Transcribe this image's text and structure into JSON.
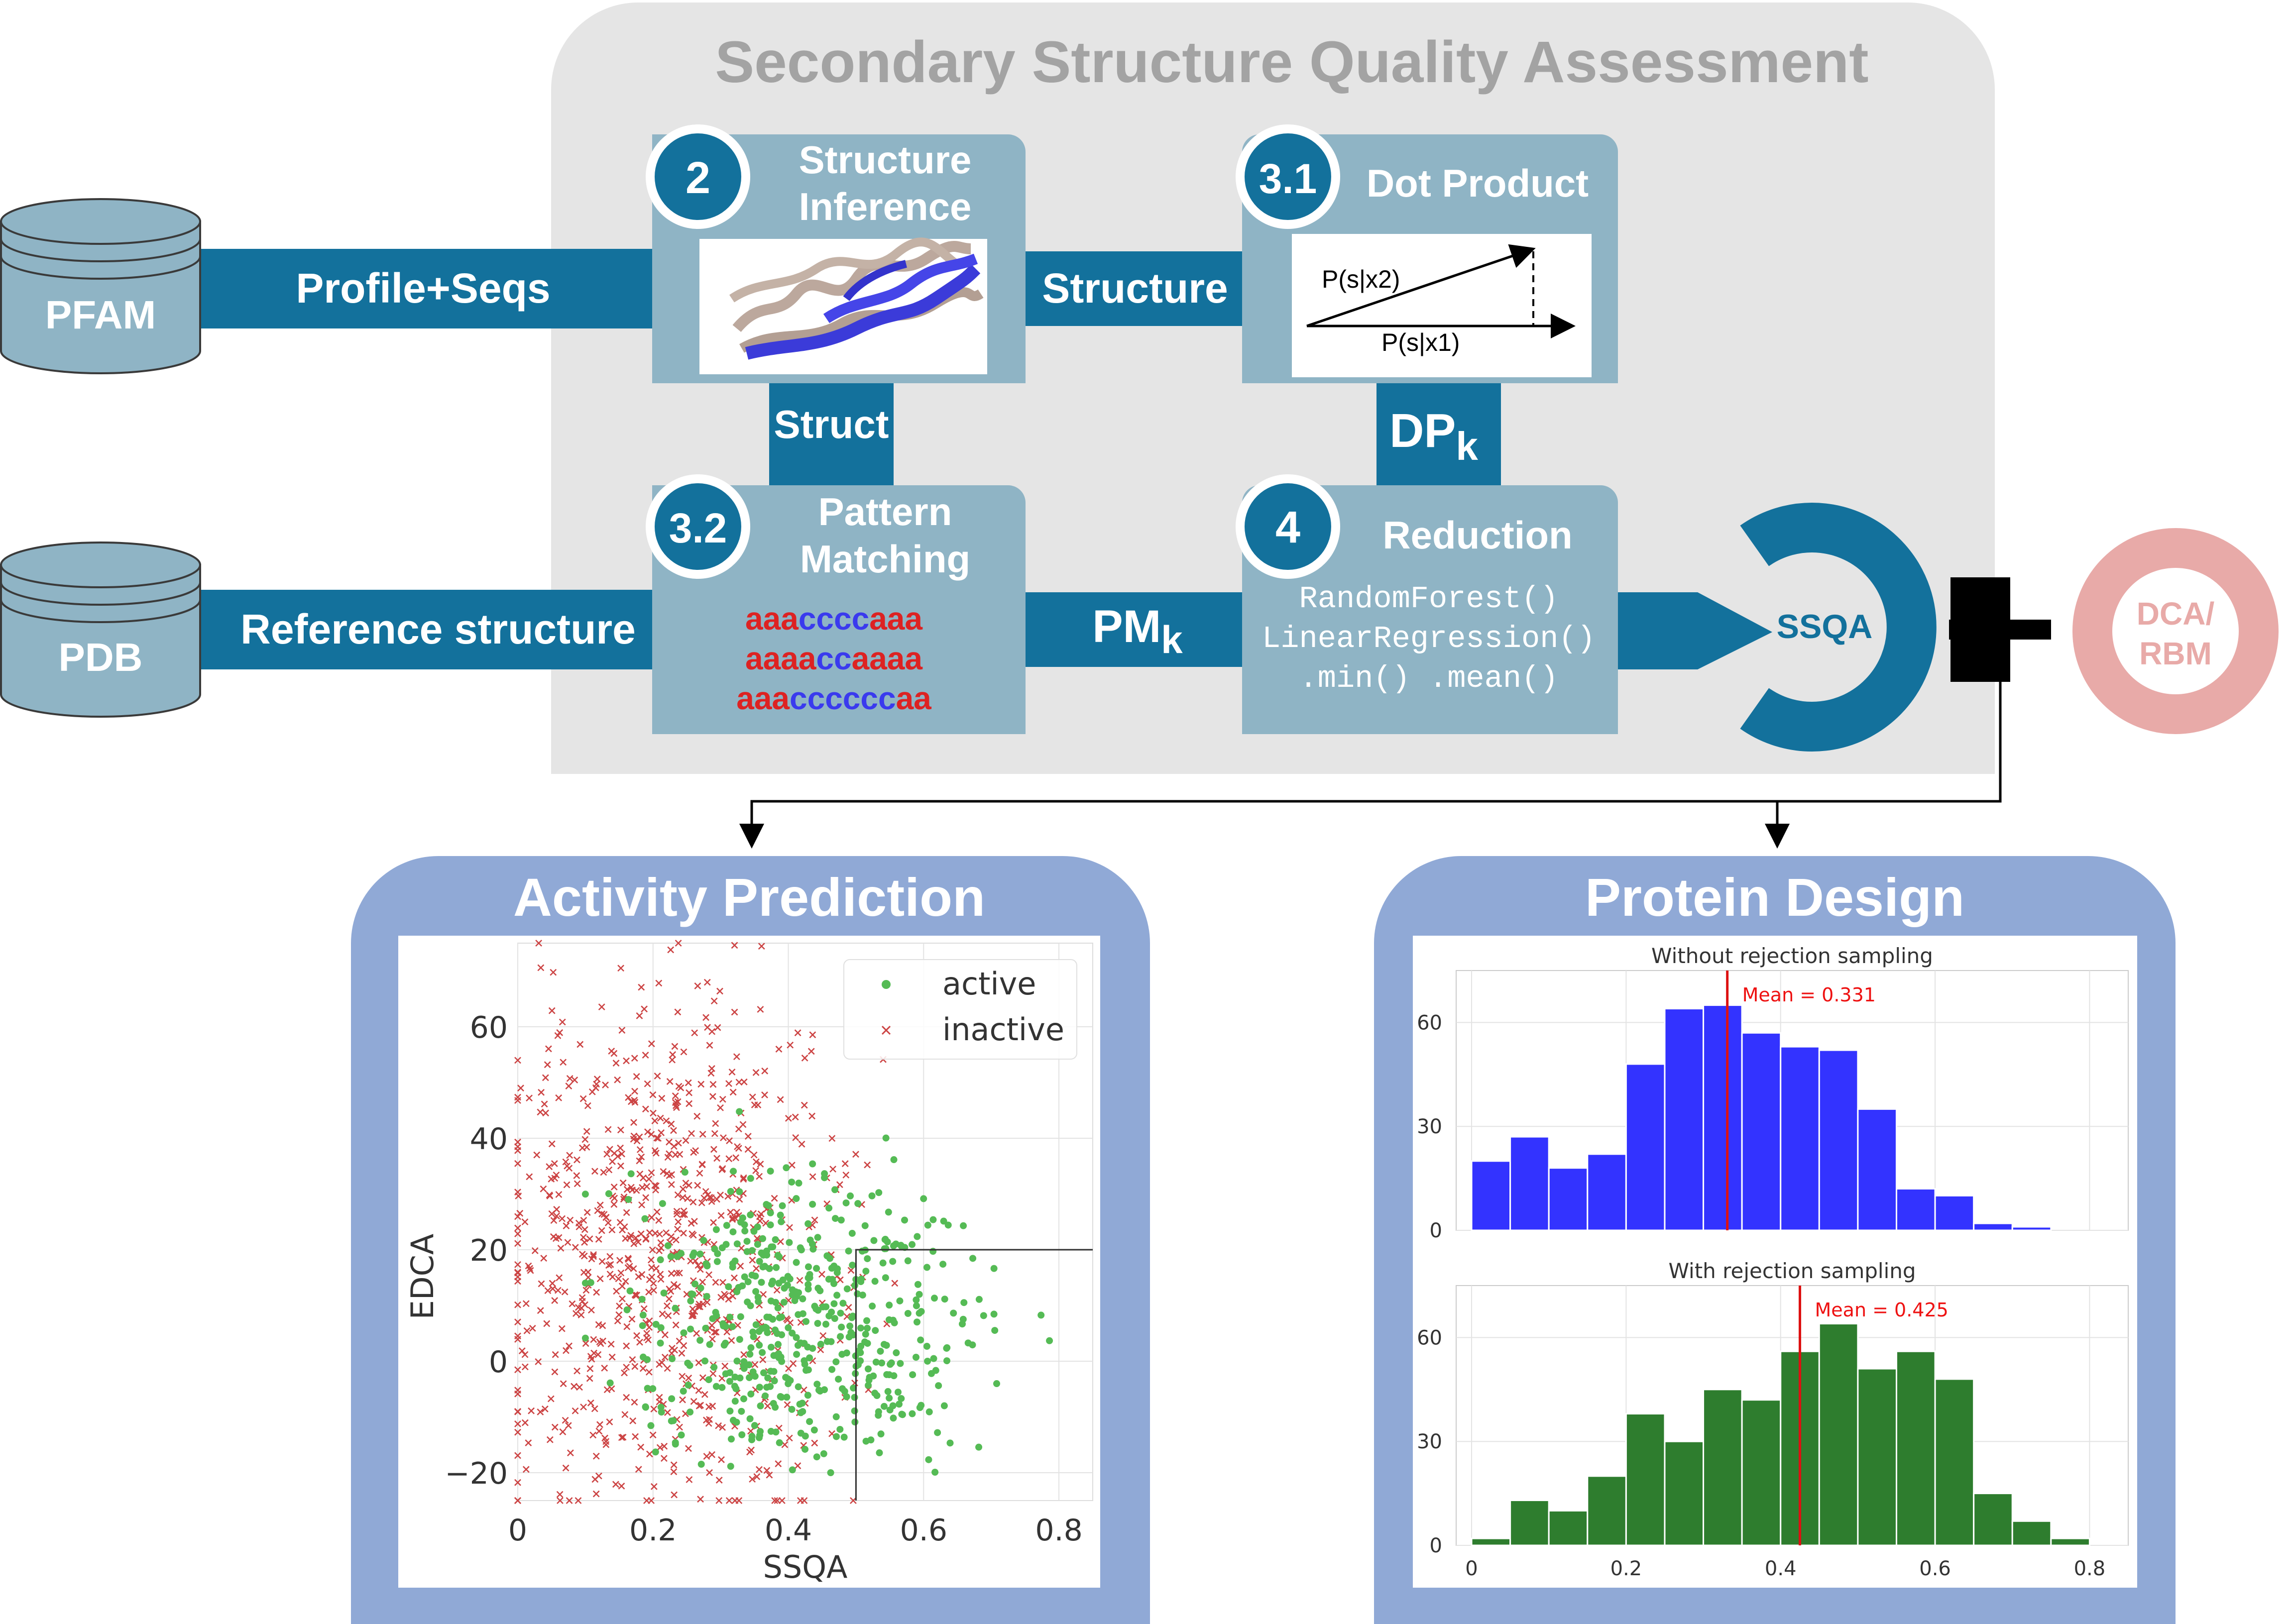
{
  "header": {
    "title": "Secondary Structure Quality Assessment"
  },
  "databases": {
    "pfam": "PFAM",
    "pdb": "PDB"
  },
  "arrows": {
    "profile_seqs": "Profile+Seqs",
    "reference_structure": "Reference structure",
    "structure": "Structure",
    "struct": "Struct",
    "dp": "DP",
    "dp_sub": "k",
    "pm": "PM",
    "pm_sub": "k"
  },
  "steps": {
    "structure_inference": {
      "number": "2",
      "title_line1": "Structure",
      "title_line2": "Inference"
    },
    "dot_product": {
      "number": "3.1",
      "title": "Dot Product",
      "label_x2": "P(s|x2)",
      "label_x1": "P(s|x1)"
    },
    "pattern_matching": {
      "number": "3.2",
      "title_line1": "Pattern",
      "title_line2": "Matching",
      "patterns": [
        [
          {
            "t": "aaa",
            "c": "#dd2222"
          },
          {
            "t": "cccc",
            "c": "#3a3aee"
          },
          {
            "t": "aaa",
            "c": "#dd2222"
          }
        ],
        [
          {
            "t": "aaaa",
            "c": "#dd2222"
          },
          {
            "t": "cc",
            "c": "#3a3aee"
          },
          {
            "t": "aaaa",
            "c": "#dd2222"
          }
        ],
        [
          {
            "t": "aaa",
            "c": "#dd2222"
          },
          {
            "t": "cccccc",
            "c": "#3a3aee"
          },
          {
            "t": "aa",
            "c": "#dd2222"
          }
        ]
      ]
    },
    "reduction": {
      "number": "4",
      "title": "Reduction",
      "code_line1": "RandomForest()",
      "code_line2": "LinearRegression()",
      "code_line3": ".min() .mean()"
    }
  },
  "outputs": {
    "ssqa": "SSQA",
    "dca_line1": "DCA/",
    "dca_line2": "RBM",
    "plus": "+"
  },
  "panels": {
    "activity": {
      "title": "Activity Prediction"
    },
    "design": {
      "title": "Protein Design"
    }
  },
  "colors": {
    "primary": "#13719c",
    "box": "#8fb4c5",
    "panel": "#90a9d6",
    "bg_gray": "#e5e5e5",
    "dca": "#e8aaa8",
    "active": "#55bb55",
    "inactive": "#cc4444"
  },
  "chart_data": [
    {
      "type": "scatter",
      "panel": "Activity Prediction",
      "xlabel": "SSQA",
      "ylabel": "EDCA",
      "xlim": [
        0,
        0.85
      ],
      "ylim": [
        -25,
        75
      ],
      "xticks": [
        0,
        0.2,
        0.4,
        0.6,
        0.8
      ],
      "xtick_labels": [
        "0",
        "0.2",
        "0.4",
        "0.6",
        "0.8"
      ],
      "yticks": [
        -20,
        0,
        20,
        40,
        60
      ],
      "ytick_labels": [
        "−20",
        "0",
        "20",
        "40",
        "60"
      ],
      "legend": [
        "active",
        "inactive"
      ],
      "legend_position": "top-right",
      "threshold_box": {
        "x_min": 0.5,
        "y_max": 20
      },
      "series": [
        {
          "name": "active",
          "marker": "dot",
          "count": 520,
          "x_range": [
            0.1,
            0.8
          ],
          "y_range": [
            -20,
            50
          ],
          "center": [
            0.42,
            8
          ]
        },
        {
          "name": "inactive",
          "marker": "x",
          "count": 820,
          "x_range": [
            0,
            0.6
          ],
          "y_range": [
            -25,
            75
          ],
          "center": [
            0.22,
            18
          ]
        }
      ]
    },
    {
      "type": "bar",
      "panel": "Protein Design",
      "title": "Without rejection sampling",
      "bin_edges": [
        0,
        0.05,
        0.1,
        0.15,
        0.2,
        0.25,
        0.3,
        0.35,
        0.4,
        0.45,
        0.5,
        0.55,
        0.6,
        0.65,
        0.7,
        0.75
      ],
      "values": [
        20,
        27,
        18,
        22,
        48,
        64,
        65,
        57,
        53,
        52,
        35,
        12,
        10,
        2,
        1
      ],
      "color": "#3333ff",
      "mean": 0.331,
      "mean_label": "Mean = 0.331",
      "xlim": [
        -0.02,
        0.85
      ],
      "ylim": [
        0,
        75
      ],
      "yticks": [
        0,
        30,
        60
      ]
    },
    {
      "type": "bar",
      "panel": "Protein Design",
      "title": "With rejection sampling",
      "bin_edges": [
        0,
        0.05,
        0.1,
        0.15,
        0.2,
        0.25,
        0.3,
        0.35,
        0.4,
        0.45,
        0.5,
        0.55,
        0.6,
        0.65,
        0.7,
        0.75,
        0.8
      ],
      "values": [
        2,
        13,
        10,
        20,
        38,
        30,
        45,
        42,
        56,
        64,
        51,
        56,
        48,
        15,
        7,
        2
      ],
      "color": "#2e7d2e",
      "mean": 0.425,
      "mean_label": "Mean = 0.425",
      "xlim": [
        -0.02,
        0.85
      ],
      "ylim": [
        0,
        75
      ],
      "xticks": [
        0,
        0.2,
        0.4,
        0.6,
        0.8
      ],
      "xtick_labels": [
        "0",
        "0.2",
        "0.4",
        "0.6",
        "0.8"
      ],
      "yticks": [
        0,
        30,
        60
      ]
    }
  ]
}
